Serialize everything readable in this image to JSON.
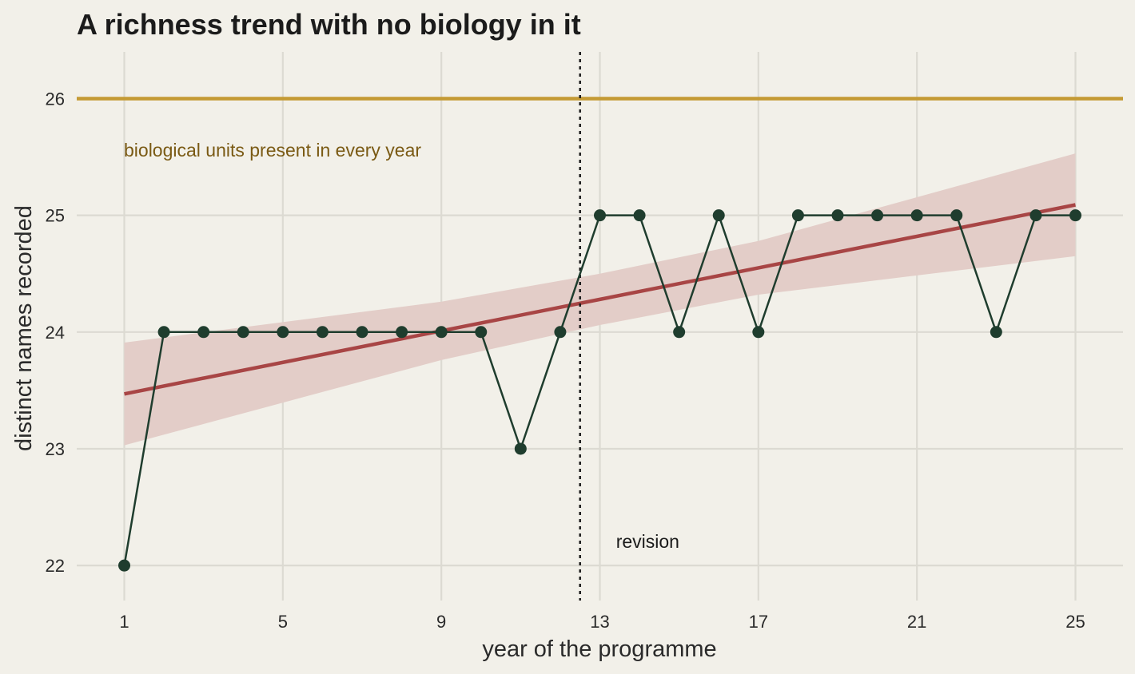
{
  "chart_data": {
    "type": "line",
    "title": "A richness trend with no biology in it",
    "xlabel": "year of the programme",
    "ylabel": "distinct names recorded",
    "xlim": [
      -0.2,
      26.2
    ],
    "ylim": [
      21.7,
      26.4
    ],
    "xticks": [
      1,
      5,
      9,
      13,
      17,
      21,
      25
    ],
    "yticks": [
      22,
      23,
      24,
      25,
      26
    ],
    "grid": true,
    "series": [
      {
        "role": "observed",
        "color": "#1f3d2e",
        "x": [
          1,
          2,
          3,
          4,
          5,
          6,
          7,
          8,
          9,
          10,
          11,
          12,
          13,
          14,
          15,
          16,
          17,
          18,
          19,
          20,
          21,
          22,
          23,
          24,
          25
        ],
        "y": [
          22,
          24,
          24,
          24,
          24,
          24,
          24,
          24,
          24,
          24,
          23,
          24,
          25,
          25,
          24,
          25,
          24,
          25,
          25,
          25,
          25,
          25,
          24,
          25,
          25
        ]
      }
    ],
    "trend": {
      "color": "#a84545",
      "band_color": "#e3cdc8",
      "x": [
        1,
        9,
        13,
        17,
        25
      ],
      "fit": [
        23.47,
        24.01,
        24.28,
        24.55,
        25.09
      ],
      "lower": [
        23.03,
        23.76,
        24.06,
        24.32,
        24.65
      ],
      "upper": [
        23.91,
        24.26,
        24.5,
        24.78,
        25.53
      ]
    },
    "reference_line": {
      "y": 26,
      "color": "#c49a34",
      "label": "biological units present in every year"
    },
    "vline": {
      "x": 12.5,
      "label": "revision"
    }
  }
}
